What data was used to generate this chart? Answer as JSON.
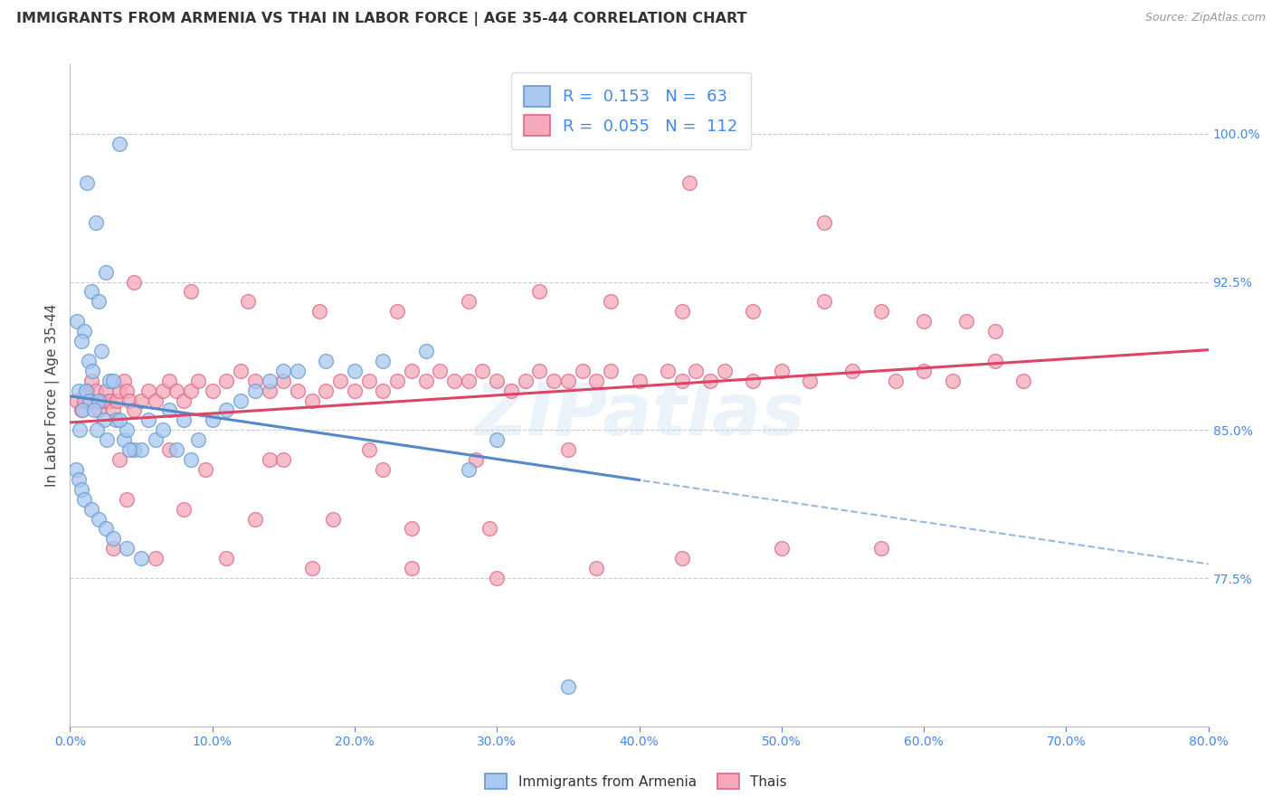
{
  "title": "IMMIGRANTS FROM ARMENIA VS THAI IN LABOR FORCE | AGE 35-44 CORRELATION CHART",
  "source": "Source: ZipAtlas.com",
  "ylabel": "In Labor Force | Age 35-44",
  "xlim": [
    0.0,
    80.0
  ],
  "ylim": [
    70.0,
    103.5
  ],
  "yticks": [
    77.5,
    85.0,
    92.5,
    100.0
  ],
  "ytick_labels": [
    "77.5%",
    "85.0%",
    "92.5%",
    "100.0%"
  ],
  "xticks": [
    0.0,
    10.0,
    20.0,
    30.0,
    40.0,
    50.0,
    60.0,
    70.0,
    80.0
  ],
  "xtick_labels": [
    "0.0%",
    "10.0%",
    "20.0%",
    "30.0%",
    "40.0%",
    "50.0%",
    "60.0%",
    "70.0%",
    "80.0%"
  ],
  "armenia_color": "#A8C8F0",
  "thai_color": "#F4A8B8",
  "armenia_edge": "#6699CC",
  "thai_edge": "#DD6688",
  "trend_armenia_color": "#5588CC",
  "trend_thai_color": "#DD4466",
  "r_armenia": 0.153,
  "n_armenia": 63,
  "r_thai": 0.055,
  "n_thai": 112,
  "legend_label_armenia": "Immigrants from Armenia",
  "legend_label_thai": "Thais",
  "armenia_x": [
    3.5,
    1.2,
    1.8,
    2.5,
    1.5,
    2.0,
    0.5,
    1.0,
    0.8,
    2.2,
    1.3,
    1.6,
    2.8,
    3.0,
    0.6,
    1.1,
    1.4,
    2.0,
    0.9,
    1.7,
    3.2,
    2.4,
    0.7,
    1.9,
    2.6,
    3.8,
    4.5,
    5.0,
    6.0,
    4.0,
    3.5,
    5.5,
    7.0,
    6.5,
    8.0,
    4.2,
    9.0,
    10.0,
    11.0,
    12.0,
    13.0,
    14.0,
    15.0,
    8.5,
    7.5,
    16.0,
    18.0,
    20.0,
    22.0,
    25.0,
    28.0,
    30.0,
    0.4,
    0.6,
    0.8,
    1.0,
    1.5,
    2.0,
    2.5,
    3.0,
    4.0,
    5.0,
    35.0
  ],
  "armenia_y": [
    99.5,
    97.5,
    95.5,
    93.0,
    92.0,
    91.5,
    90.5,
    90.0,
    89.5,
    89.0,
    88.5,
    88.0,
    87.5,
    87.5,
    87.0,
    87.0,
    86.5,
    86.5,
    86.0,
    86.0,
    85.5,
    85.5,
    85.0,
    85.0,
    84.5,
    84.5,
    84.0,
    84.0,
    84.5,
    85.0,
    85.5,
    85.5,
    86.0,
    85.0,
    85.5,
    84.0,
    84.5,
    85.5,
    86.0,
    86.5,
    87.0,
    87.5,
    88.0,
    83.5,
    84.0,
    88.0,
    88.5,
    88.0,
    88.5,
    89.0,
    83.0,
    84.5,
    83.0,
    82.5,
    82.0,
    81.5,
    81.0,
    80.5,
    80.0,
    79.5,
    79.0,
    78.5,
    72.0
  ],
  "thai_x": [
    0.5,
    0.8,
    1.0,
    1.2,
    1.5,
    1.8,
    2.0,
    2.3,
    2.5,
    2.8,
    3.0,
    3.3,
    3.5,
    3.8,
    4.0,
    4.2,
    4.5,
    5.0,
    5.5,
    6.0,
    6.5,
    7.0,
    7.5,
    8.0,
    8.5,
    9.0,
    10.0,
    11.0,
    12.0,
    13.0,
    14.0,
    15.0,
    16.0,
    17.0,
    18.0,
    19.0,
    20.0,
    21.0,
    22.0,
    23.0,
    24.0,
    25.0,
    26.0,
    27.0,
    28.0,
    29.0,
    30.0,
    31.0,
    32.0,
    33.0,
    34.0,
    35.0,
    36.0,
    37.0,
    38.0,
    40.0,
    42.0,
    43.0,
    44.0,
    45.0,
    46.0,
    48.0,
    50.0,
    52.0,
    55.0,
    58.0,
    60.0,
    62.0,
    65.0,
    67.0,
    4.5,
    8.5,
    12.5,
    17.5,
    23.0,
    28.0,
    33.0,
    38.0,
    43.0,
    48.0,
    53.0,
    57.0,
    60.0,
    63.0,
    65.0,
    43.5,
    53.0,
    7.0,
    14.0,
    21.0,
    28.5,
    35.0,
    3.5,
    9.5,
    15.0,
    22.0,
    4.0,
    8.0,
    13.0,
    18.5,
    24.0,
    29.5,
    3.0,
    6.0,
    11.0,
    17.0,
    24.0,
    30.0,
    37.0,
    43.0,
    50.0,
    57.0
  ],
  "thai_y": [
    86.5,
    86.0,
    86.5,
    87.0,
    87.5,
    87.0,
    86.0,
    86.5,
    87.0,
    86.5,
    86.0,
    86.5,
    87.0,
    87.5,
    87.0,
    86.5,
    86.0,
    86.5,
    87.0,
    86.5,
    87.0,
    87.5,
    87.0,
    86.5,
    87.0,
    87.5,
    87.0,
    87.5,
    88.0,
    87.5,
    87.0,
    87.5,
    87.0,
    86.5,
    87.0,
    87.5,
    87.0,
    87.5,
    87.0,
    87.5,
    88.0,
    87.5,
    88.0,
    87.5,
    87.5,
    88.0,
    87.5,
    87.0,
    87.5,
    88.0,
    87.5,
    87.5,
    88.0,
    87.5,
    88.0,
    87.5,
    88.0,
    87.5,
    88.0,
    87.5,
    88.0,
    87.5,
    88.0,
    87.5,
    88.0,
    87.5,
    88.0,
    87.5,
    88.5,
    87.5,
    92.5,
    92.0,
    91.5,
    91.0,
    91.0,
    91.5,
    92.0,
    91.5,
    91.0,
    91.0,
    91.5,
    91.0,
    90.5,
    90.5,
    90.0,
    97.5,
    95.5,
    84.0,
    83.5,
    84.0,
    83.5,
    84.0,
    83.5,
    83.0,
    83.5,
    83.0,
    81.5,
    81.0,
    80.5,
    80.5,
    80.0,
    80.0,
    79.0,
    78.5,
    78.5,
    78.0,
    78.0,
    77.5,
    78.0,
    78.5,
    79.0,
    79.0
  ],
  "watermark": "ZIPatlas",
  "background_color": "#FFFFFF",
  "grid_color": "#CCCCCC",
  "text_color_blue": "#4488EE",
  "title_color": "#333333"
}
